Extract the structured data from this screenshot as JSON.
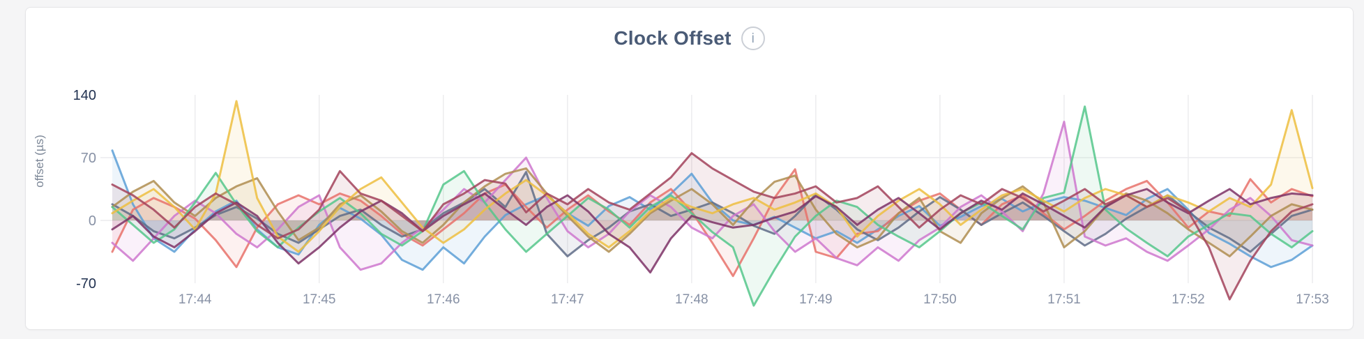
{
  "page": {
    "background_color": "#f5f5f6"
  },
  "card": {
    "background_color": "#ffffff",
    "border_color": "#e5e5e7"
  },
  "header": {
    "title": "Clock Offset",
    "info_icon": "i"
  },
  "axes": {
    "tick_color": "#8791a5",
    "emphasis_tick_color": "#213150",
    "grid_color": "#ececee",
    "axis_title_color": "#7c8797"
  },
  "chart_data": {
    "type": "line",
    "title": "Clock Offset",
    "xlabel": "",
    "ylabel": "offset (µs)",
    "x_start_time": "17:43:20",
    "x_end_time": "17:53:00",
    "x_interval_seconds": 10,
    "x_ticks": [
      "17:44",
      "17:45",
      "17:46",
      "17:47",
      "17:48",
      "17:49",
      "17:50",
      "17:51",
      "17:52",
      "17:53"
    ],
    "x_tick_indices": [
      4,
      10,
      16,
      22,
      28,
      34,
      40,
      46,
      52,
      58
    ],
    "y_ticks": [
      {
        "label": "140",
        "value": 140,
        "emphasis": true
      },
      {
        "label": "70",
        "value": 70,
        "emphasis": false
      },
      {
        "label": "0",
        "value": 0,
        "emphasis": false
      },
      {
        "label": "-70",
        "value": -70,
        "emphasis": true
      }
    ],
    "grid_y_values": [
      70,
      0
    ],
    "ylim": [
      -70,
      140
    ],
    "grid": true,
    "legend": "none",
    "fill_to_zero": true,
    "fill_opacity": 0.1,
    "line_width": 3,
    "series": [
      {
        "name": "series-1",
        "color": "#5C9FD6",
        "values": [
          78,
          18,
          -20,
          -35,
          -10,
          10,
          22,
          -10,
          -30,
          -38,
          -5,
          14,
          2,
          -16,
          -44,
          -55,
          -30,
          -48,
          -18,
          6,
          18,
          28,
          8,
          -6,
          16,
          26,
          12,
          30,
          52,
          20,
          0,
          -5,
          4,
          -8,
          -20,
          -12,
          -25,
          -10,
          5,
          16,
          -6,
          4,
          16,
          24,
          10,
          20,
          26,
          22,
          14,
          6,
          24,
          35,
          12,
          -14,
          -26,
          -40,
          -52,
          -44,
          -28
        ]
      },
      {
        "name": "series-2",
        "color": "#E8716A",
        "values": [
          -35,
          12,
          25,
          15,
          2,
          -22,
          -52,
          -8,
          18,
          28,
          18,
          30,
          22,
          5,
          -15,
          -28,
          -10,
          8,
          30,
          40,
          15,
          -8,
          12,
          28,
          10,
          -5,
          20,
          35,
          10,
          -25,
          -62,
          -20,
          25,
          57,
          -35,
          -42,
          -15,
          -12,
          8,
          22,
          30,
          12,
          -5,
          18,
          28,
          8,
          -10,
          5,
          22,
          35,
          44,
          20,
          -8,
          10,
          5,
          46,
          20,
          35,
          27
        ]
      },
      {
        "name": "series-3",
        "color": "#5F6C87",
        "values": [
          18,
          5,
          -12,
          -20,
          -8,
          6,
          15,
          2,
          -15,
          -25,
          -10,
          5,
          12,
          -5,
          -18,
          -10,
          8,
          20,
          35,
          15,
          54,
          -15,
          -40,
          -22,
          -8,
          10,
          18,
          5,
          12,
          20,
          8,
          -6,
          -15,
          5,
          29,
          12,
          -10,
          -22,
          -8,
          10,
          26,
          12,
          -5,
          8,
          20,
          5,
          -12,
          -28,
          -15,
          2,
          15,
          28,
          10,
          -8,
          -20,
          -35,
          -15,
          5,
          12
        ]
      },
      {
        "name": "series-4",
        "color": "#CE77CE",
        "values": [
          -25,
          -45,
          -20,
          5,
          22,
          8,
          -15,
          -30,
          -10,
          15,
          28,
          -30,
          -55,
          -48,
          -25,
          -8,
          12,
          35,
          20,
          45,
          70,
          25,
          -12,
          -30,
          -15,
          10,
          28,
          15,
          -8,
          -20,
          5,
          18,
          -12,
          -35,
          -20,
          -42,
          -50,
          -30,
          -45,
          -22,
          -8,
          15,
          28,
          10,
          -12,
          30,
          110,
          -18,
          -28,
          -20,
          -35,
          -45,
          -28,
          -10,
          12,
          25,
          5,
          -22,
          -28
        ]
      },
      {
        "name": "series-5",
        "color": "#AF8D50",
        "values": [
          15,
          32,
          44,
          20,
          5,
          25,
          38,
          47,
          10,
          -22,
          -8,
          18,
          28,
          10,
          -12,
          -25,
          -5,
          20,
          38,
          52,
          58,
          30,
          5,
          -18,
          -35,
          -15,
          8,
          22,
          35,
          18,
          -5,
          22,
          43,
          50,
          12,
          -15,
          -30,
          -20,
          8,
          25,
          -12,
          -25,
          8,
          25,
          38,
          20,
          -30,
          -12,
          15,
          30,
          22,
          8,
          -10,
          -25,
          -40,
          -18,
          5,
          18,
          12
        ]
      },
      {
        "name": "series-6",
        "color": "#55C78B",
        "values": [
          15,
          -5,
          -25,
          -10,
          20,
          53,
          18,
          -12,
          -30,
          -8,
          10,
          25,
          8,
          -15,
          -28,
          -12,
          40,
          55,
          20,
          -10,
          -35,
          -15,
          5,
          25,
          12,
          -8,
          15,
          28,
          8,
          -13,
          -30,
          -95,
          -55,
          -18,
          5,
          22,
          15,
          -5,
          -18,
          -30,
          -12,
          8,
          20,
          5,
          -10,
          25,
          31,
          127,
          12,
          -9,
          -25,
          -40,
          -18,
          -5,
          8,
          5,
          -15,
          -30,
          -12
        ]
      },
      {
        "name": "series-7",
        "color": "#EDBE40",
        "values": [
          8,
          22,
          35,
          15,
          -10,
          30,
          133,
          25,
          -18,
          -35,
          -12,
          15,
          35,
          48,
          20,
          -8,
          -25,
          -10,
          12,
          30,
          45,
          28,
          8,
          -15,
          -30,
          -12,
          10,
          25,
          15,
          8,
          18,
          25,
          12,
          20,
          30,
          15,
          -18,
          5,
          22,
          35,
          18,
          -5,
          12,
          28,
          35,
          22,
          10,
          25,
          35,
          28,
          15,
          28,
          20,
          10,
          25,
          15,
          40,
          123,
          36
        ]
      },
      {
        "name": "series-8",
        "color": "#7D3166",
        "values": [
          -10,
          5,
          -18,
          -30,
          -12,
          8,
          20,
          5,
          -25,
          -48,
          -30,
          -8,
          10,
          22,
          8,
          -12,
          5,
          18,
          30,
          12,
          -5,
          15,
          28,
          10,
          -15,
          -30,
          -58,
          -20,
          5,
          -2,
          -8,
          -5,
          3,
          10,
          27,
          15,
          -5,
          12,
          25,
          8,
          -10,
          8,
          22,
          12,
          30,
          18,
          5,
          -8,
          15,
          28,
          35,
          20,
          8,
          22,
          35,
          18,
          25,
          30,
          28
        ]
      },
      {
        "name": "series-9",
        "color": "#A2425A",
        "values": [
          40,
          28,
          12,
          -8,
          15,
          30,
          18,
          -5,
          -20,
          -10,
          12,
          55,
          30,
          22,
          5,
          -12,
          18,
          30,
          45,
          41,
          9,
          30,
          18,
          35,
          20,
          12,
          30,
          48,
          75,
          58,
          45,
          32,
          25,
          30,
          38,
          20,
          25,
          38,
          15,
          -8,
          12,
          28,
          18,
          35,
          25,
          10,
          22,
          35,
          18,
          28,
          15,
          25,
          10,
          -30,
          -88,
          -45,
          -12,
          10,
          18
        ]
      }
    ]
  }
}
